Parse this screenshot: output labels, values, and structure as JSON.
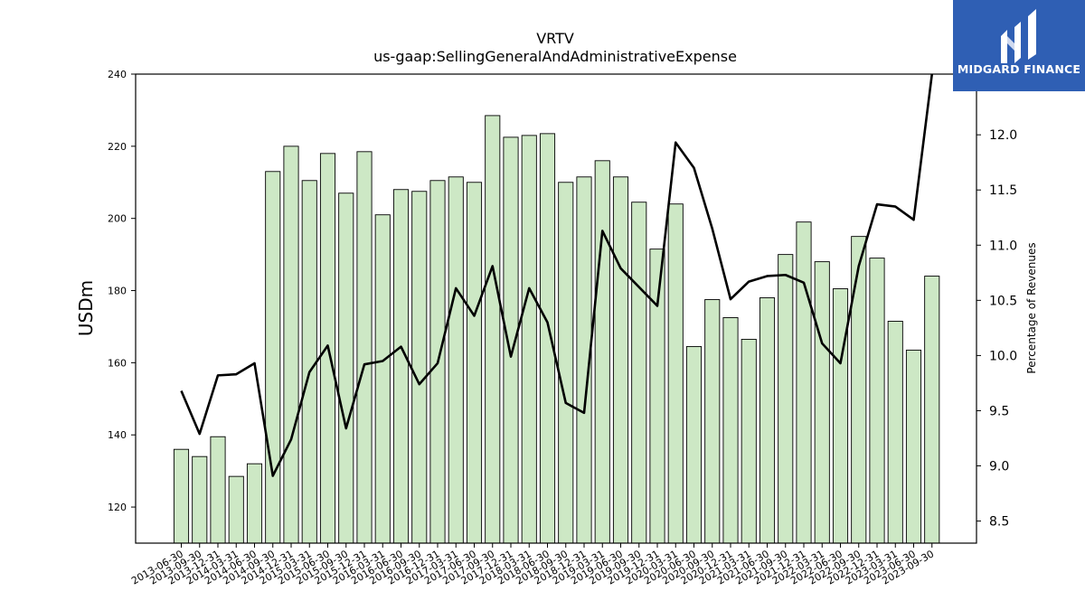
{
  "chart_data": {
    "type": "bar",
    "title": "VRTV",
    "subtitle": "us-gaap:SellingGeneralAndAdministrativeExpense",
    "ylabel": "USDm",
    "y2label": "Percentage of Revenues",
    "ylim": [
      110,
      240
    ],
    "y2lim": [
      8.3,
      12.55
    ],
    "yticks": [
      120,
      140,
      160,
      180,
      200,
      220,
      240
    ],
    "y2ticks": [
      "8.5",
      "9.0",
      "9.5",
      "10.0",
      "10.5",
      "11.0",
      "11.5",
      "12.0"
    ],
    "categories": [
      "2013-06-30",
      "2013-09-30",
      "2013-12-31",
      "2014-03-31",
      "2014-06-30",
      "2014-09-30",
      "2014-12-31",
      "2015-03-31",
      "2015-06-30",
      "2015-09-30",
      "2015-12-31",
      "2016-03-31",
      "2016-06-30",
      "2016-09-30",
      "2016-12-31",
      "2017-03-31",
      "2017-06-30",
      "2017-09-30",
      "2017-12-31",
      "2018-03-31",
      "2018-06-30",
      "2018-09-30",
      "2018-12-31",
      "2019-03-31",
      "2019-06-30",
      "2019-09-30",
      "2019-12-31",
      "2020-03-31",
      "2020-06-30",
      "2020-09-30",
      "2020-12-31",
      "2021-03-31",
      "2021-06-30",
      "2021-09-30",
      "2021-12-31",
      "2022-03-31",
      "2022-06-30",
      "2022-09-30",
      "2022-12-31",
      "2023-03-31",
      "2023-06-30",
      "2023-09-30"
    ],
    "series": [
      {
        "kind": "bar",
        "values": [
          136,
          134,
          139.5,
          128.5,
          132,
          213,
          220,
          210.5,
          218,
          207,
          218.5,
          201,
          208,
          207.5,
          210.5,
          211.5,
          210,
          228.5,
          222.5,
          223,
          223.5,
          210,
          211.5,
          216,
          211.5,
          204.5,
          191.5,
          204,
          164.5,
          177.5,
          172.5,
          166.5,
          178,
          190,
          199,
          188,
          180.5,
          195,
          189,
          171.5,
          163.5,
          184
        ],
        "color": "#cde8c5"
      },
      {
        "kind": "line",
        "values": [
          9.68,
          9.29,
          9.82,
          9.83,
          9.93,
          8.91,
          9.24,
          9.85,
          10.09,
          9.34,
          9.92,
          9.95,
          10.08,
          9.74,
          9.93,
          10.61,
          10.36,
          10.81,
          9.99,
          10.61,
          10.3,
          9.57,
          9.48,
          11.13,
          10.79,
          10.62,
          10.45,
          11.93,
          11.7,
          11.15,
          10.51,
          10.67,
          10.72,
          10.73,
          10.66,
          10.11,
          9.93,
          10.81,
          11.37,
          11.35,
          11.23,
          12.55
        ],
        "color": "#000000"
      }
    ],
    "grid": false
  },
  "logo": {
    "brand": "MIDGARD FINANCE",
    "bg_color": "#2f5fb4"
  }
}
